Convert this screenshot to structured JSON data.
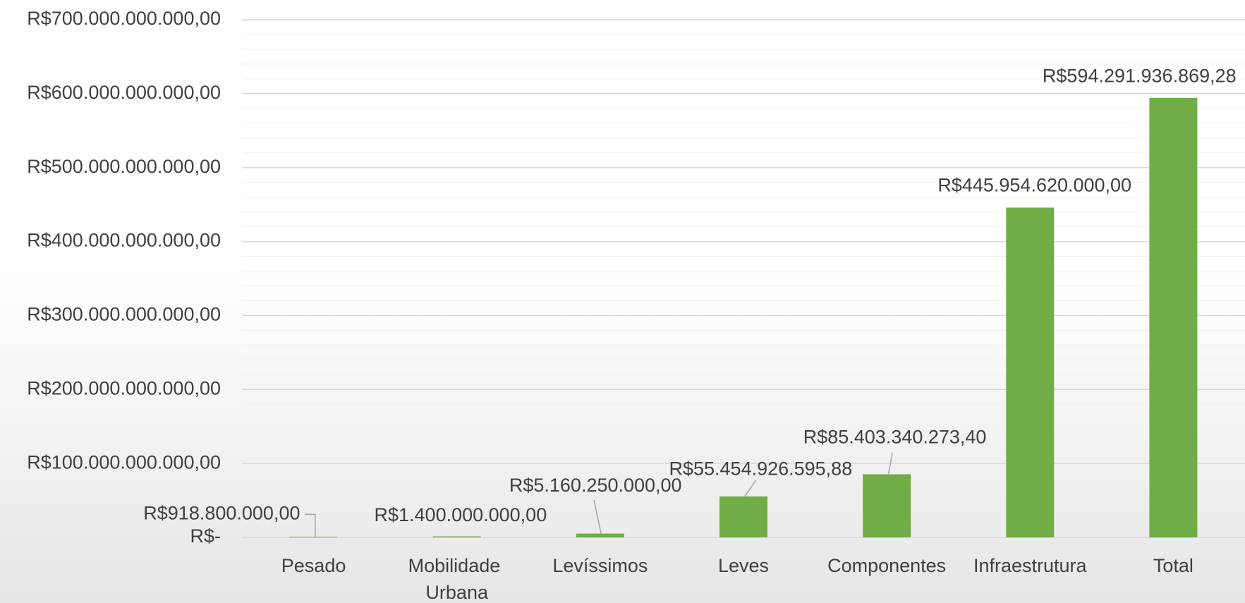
{
  "chart_data": {
    "type": "bar",
    "categories": [
      "Pesado",
      "Mobilidade Urbana",
      "Levíssimos",
      "Leves",
      "Componentes",
      "Infraestrutura",
      "Total"
    ],
    "values": [
      918800000,
      1400000000,
      5160250000,
      55454926595.88,
      85403340273.4,
      445954620000,
      594291936869.28
    ],
    "value_labels": [
      "R$918.800.000,00",
      "R$1.400.000.000,00",
      "R$5.160.250.000,00",
      "R$55.454.926.595,88",
      "R$85.403.340.273,40",
      "R$445.954.620.000,00",
      "R$594.291.936.869,28"
    ],
    "color": "#70ad47",
    "ylim": [
      0,
      700000000000
    ],
    "yticks": [
      {
        "value": 0,
        "label": "R$-"
      },
      {
        "value": 100000000000,
        "label": "R$100.000.000.000,00"
      },
      {
        "value": 200000000000,
        "label": "R$200.000.000.000,00"
      },
      {
        "value": 300000000000,
        "label": "R$300.000.000.000,00"
      },
      {
        "value": 400000000000,
        "label": "R$400.000.000.000,00"
      },
      {
        "value": 500000000000,
        "label": "R$500.000.000.000,00"
      },
      {
        "value": 600000000000,
        "label": "R$600.000.000.000,00"
      },
      {
        "value": 700000000000,
        "label": "R$700.000.000.000,00"
      }
    ],
    "minor_yticks": [
      20000000000,
      40000000000,
      60000000000,
      80000000000,
      120000000000,
      140000000000,
      160000000000,
      180000000000,
      220000000000,
      240000000000,
      260000000000,
      280000000000,
      320000000000,
      340000000000,
      360000000000,
      380000000000,
      420000000000,
      440000000000,
      460000000000,
      480000000000,
      520000000000,
      540000000000,
      560000000000,
      580000000000,
      620000000000,
      640000000000,
      660000000000,
      680000000000
    ],
    "grid": true
  }
}
